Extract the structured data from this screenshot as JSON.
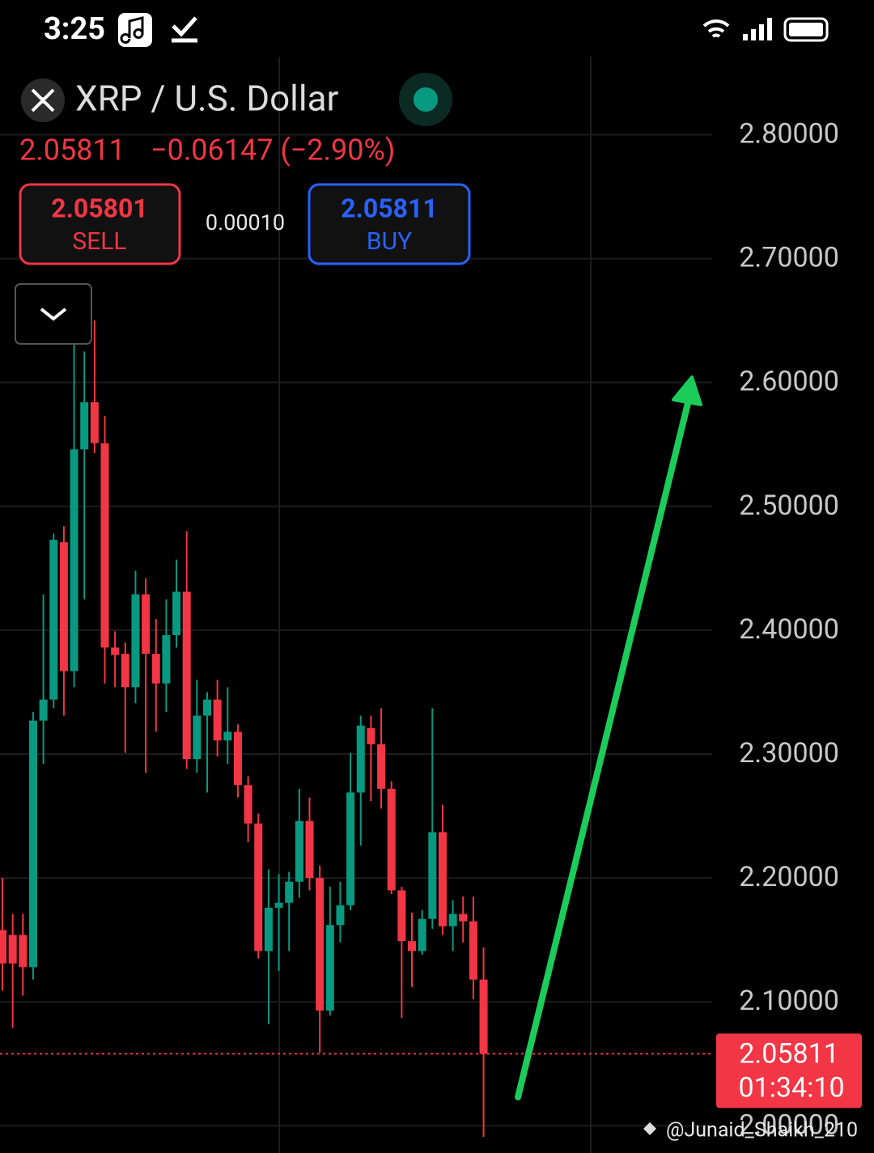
{
  "status_bar": {
    "time": "3:25"
  },
  "header": {
    "symbol": "XRP / U.S. Dollar",
    "last_price": "2.05811",
    "change": "−0.06147 (−2.90%)",
    "sell_price": "2.05801",
    "sell_label": "SELL",
    "spread": "0.00010",
    "buy_price": "2.05811",
    "buy_label": "BUY"
  },
  "chart_data": {
    "type": "candlestick",
    "open": [
      2.158,
      2.154,
      2.154,
      2.128,
      2.327,
      2.344,
      2.471,
      2.367,
      2.546,
      2.584,
      2.551,
      2.386,
      2.381,
      2.354,
      2.429,
      2.381,
      2.357,
      2.396,
      2.431,
      2.296,
      2.331,
      2.344,
      2.311,
      2.318,
      2.275,
      2.244,
      2.141,
      2.176,
      2.18,
      2.197,
      2.246,
      2.2,
      2.093,
      2.162,
      2.178,
      2.269,
      2.321,
      2.308,
      2.272,
      2.19,
      2.149,
      2.141,
      2.167,
      2.237,
      2.161,
      2.171,
      2.165,
      2.118
    ],
    "high": [
      2.2,
      2.171,
      2.171,
      2.334,
      2.429,
      2.478,
      2.484,
      2.658,
      2.625,
      2.65,
      2.573,
      2.399,
      2.39,
      2.448,
      2.442,
      2.409,
      2.425,
      2.457,
      2.48,
      2.36,
      2.35,
      2.36,
      2.354,
      2.324,
      2.282,
      2.252,
      2.207,
      2.203,
      2.205,
      2.272,
      2.265,
      2.21,
      2.193,
      2.197,
      2.301,
      2.331,
      2.331,
      2.337,
      2.278,
      2.193,
      2.172,
      2.174,
      2.337,
      2.259,
      2.182,
      2.185,
      2.185,
      2.144
    ],
    "low": [
      2.109,
      2.079,
      2.105,
      2.118,
      2.292,
      2.337,
      2.331,
      2.354,
      2.425,
      2.543,
      2.357,
      2.354,
      2.301,
      2.341,
      2.285,
      2.318,
      2.334,
      2.386,
      2.288,
      2.285,
      2.269,
      2.298,
      2.292,
      2.265,
      2.229,
      2.135,
      2.082,
      2.125,
      2.141,
      2.184,
      2.19,
      2.059,
      2.089,
      2.148,
      2.174,
      2.226,
      2.262,
      2.256,
      2.187,
      2.087,
      2.112,
      2.138,
      2.159,
      2.154,
      2.141,
      2.148,
      2.102,
      1.991
    ],
    "close": [
      2.131,
      2.131,
      2.128,
      2.327,
      2.344,
      2.473,
      2.367,
      2.546,
      2.584,
      2.551,
      2.386,
      2.38,
      2.354,
      2.429,
      2.381,
      2.357,
      2.396,
      2.431,
      2.296,
      2.331,
      2.344,
      2.311,
      2.318,
      2.275,
      2.244,
      2.141,
      2.176,
      2.18,
      2.197,
      2.246,
      2.2,
      2.093,
      2.162,
      2.178,
      2.269,
      2.323,
      2.308,
      2.272,
      2.19,
      2.149,
      2.141,
      2.167,
      2.237,
      2.161,
      2.171,
      2.165,
      2.118,
      2.058
    ],
    "up_color": "#089981",
    "down_color": "#f23645",
    "ylim": [
      1.978,
      2.863
    ],
    "yticks": [
      {
        "value": 2.0,
        "label": "2.00000"
      },
      {
        "value": 2.1,
        "label": "2.10000"
      },
      {
        "value": 2.2,
        "label": "2.20000"
      },
      {
        "value": 2.3,
        "label": "2.30000"
      },
      {
        "value": 2.4,
        "label": "2.40000"
      },
      {
        "value": 2.5,
        "label": "2.50000"
      },
      {
        "value": 2.6,
        "label": "2.60000"
      },
      {
        "value": 2.7,
        "label": "2.70000"
      },
      {
        "value": 2.8,
        "label": "2.80000"
      }
    ],
    "grid": true,
    "last_price": {
      "value": 2.05811,
      "label": "2.05811"
    },
    "countdown": "01:34:10"
  },
  "watermark": "@Junaid_Shaikh_210"
}
